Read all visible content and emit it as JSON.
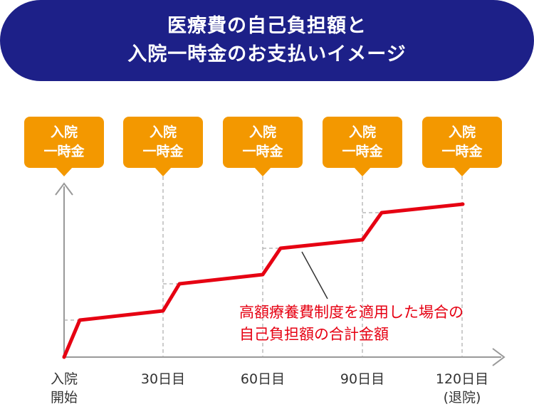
{
  "title": {
    "line1": "医療費の自己負担額と",
    "line2": "入院一時金のお支払いイメージ"
  },
  "bubbles": [
    {
      "line1": "入院",
      "line2": "一時金"
    },
    {
      "line1": "入院",
      "line2": "一時金"
    },
    {
      "line1": "入院",
      "line2": "一時金"
    },
    {
      "line1": "入院",
      "line2": "一時金"
    },
    {
      "line1": "入院",
      "line2": "一時金"
    }
  ],
  "annotation": {
    "line1": "高額療養費制度を適用した場合の",
    "line2": "自己負担額の合計金額"
  },
  "x_labels": [
    {
      "line1": "入院",
      "line2": "開始"
    },
    {
      "line1": "30日目",
      "line2": ""
    },
    {
      "line1": "60日目",
      "line2": ""
    },
    {
      "line1": "90日目",
      "line2": ""
    },
    {
      "line1": "120日目",
      "line2": "(退院)"
    }
  ],
  "colors": {
    "banner": "#1d2088",
    "bubble": "#f39800",
    "line": "#e60012",
    "axis": "#999999"
  }
}
